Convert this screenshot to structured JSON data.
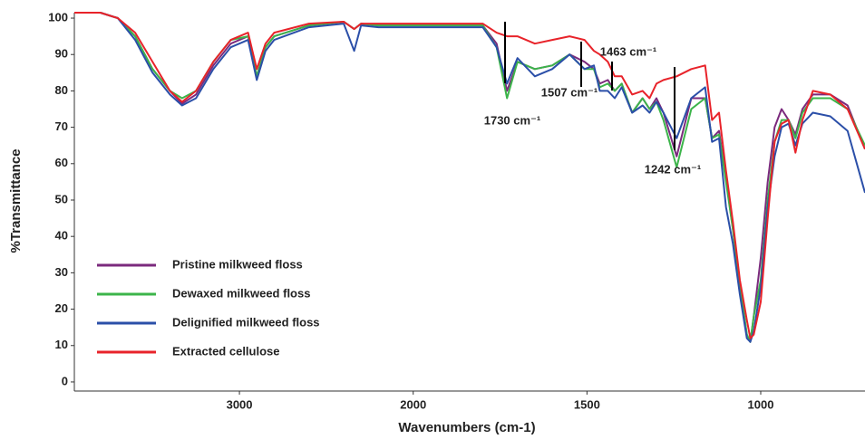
{
  "chart_data": {
    "type": "line",
    "x_label": "Wavenumbers (cm-1)",
    "y_label": "%Transmittance",
    "xlim": [
      3950,
      700
    ],
    "x_reversed": true,
    "x_expand_below": 2000,
    "x_expand_factor": 2,
    "ylim": [
      -2.5,
      101.5
    ],
    "xticks": [
      3000,
      2000,
      1500,
      1000
    ],
    "yticks": [
      0,
      10,
      20,
      30,
      40,
      50,
      60,
      70,
      80,
      90,
      100
    ],
    "grid": false,
    "legend": "lower left",
    "x": [
      3950,
      3800,
      3700,
      3600,
      3500,
      3400,
      3330,
      3250,
      3150,
      3050,
      2950,
      2900,
      2850,
      2800,
      2600,
      2400,
      2340,
      2300,
      2200,
      2000,
      1900,
      1800,
      1760,
      1730,
      1700,
      1650,
      1600,
      1550,
      1507,
      1480,
      1463,
      1440,
      1420,
      1400,
      1370,
      1340,
      1320,
      1300,
      1280,
      1242,
      1200,
      1160,
      1140,
      1120,
      1100,
      1080,
      1060,
      1040,
      1030,
      1020,
      1000,
      980,
      960,
      940,
      920,
      900,
      880,
      850,
      800,
      750,
      700
    ],
    "series": [
      {
        "name": "Pristine milkweed floss",
        "color": "#7b2a7d",
        "values": [
          101.5,
          101.5,
          100,
          95,
          86,
          80,
          76.5,
          79,
          87,
          93,
          95,
          84,
          92,
          95,
          98,
          99,
          97,
          98.5,
          98,
          98,
          98,
          98,
          93,
          80,
          88,
          86,
          87,
          90,
          88,
          86,
          82,
          83,
          80,
          82,
          74,
          78,
          75,
          78,
          74,
          62,
          78,
          78,
          67,
          69,
          56,
          42,
          26,
          13,
          11,
          18,
          34,
          55,
          70,
          75,
          72,
          68,
          75,
          79,
          79,
          76,
          64
        ]
      },
      {
        "name": "Dewaxed milkweed floss",
        "color": "#3cb44a",
        "values": [
          101.5,
          101.5,
          100,
          95,
          86,
          80,
          78,
          80,
          88,
          94,
          95,
          84,
          92,
          95,
          98,
          99,
          97,
          98.5,
          98,
          98,
          98,
          98,
          92,
          78,
          88,
          86,
          87,
          90,
          86,
          86,
          81,
          82,
          80,
          82,
          74,
          78,
          75,
          77,
          72,
          59,
          75,
          78,
          67,
          68,
          55,
          42,
          27,
          13,
          11,
          18,
          28,
          50,
          66,
          72,
          72,
          67,
          74,
          78,
          78,
          75,
          65
        ]
      },
      {
        "name": "Delignified milkweed floss",
        "color": "#2b4fa8",
        "values": [
          101.5,
          101.5,
          100,
          94,
          85,
          79,
          76,
          78,
          86,
          92,
          94,
          83,
          91,
          94,
          97.5,
          98.5,
          91,
          98,
          97.5,
          97.5,
          97.5,
          97.5,
          92,
          82,
          89,
          84,
          86,
          90,
          86,
          87,
          80,
          80,
          78,
          81,
          74,
          76,
          74,
          77,
          74,
          67,
          78,
          81,
          66,
          67,
          48,
          38,
          24,
          12,
          11,
          14,
          26,
          48,
          62,
          70,
          71,
          65,
          71,
          74,
          73,
          69,
          52
        ]
      },
      {
        "name": "Extracted cellulose",
        "color": "#e8232a",
        "values": [
          101.5,
          101.5,
          100,
          96,
          88,
          80,
          77,
          80,
          88,
          94,
          96,
          86,
          93,
          96,
          98.5,
          99,
          97,
          98.5,
          98.5,
          98.5,
          98.5,
          98.5,
          96,
          95,
          95,
          93,
          94,
          95,
          94,
          91,
          90,
          88,
          84,
          84,
          79,
          80,
          78,
          82,
          83,
          84,
          86,
          87,
          72,
          74,
          58,
          44,
          28,
          17,
          12,
          13,
          22,
          45,
          66,
          71,
          72,
          63,
          72,
          80,
          79,
          75,
          64
        ]
      }
    ],
    "annotations": [
      "1730 cm⁻¹",
      "1507 cm⁻¹",
      "1463 cm⁻¹",
      "1242 cm⁻¹"
    ]
  }
}
